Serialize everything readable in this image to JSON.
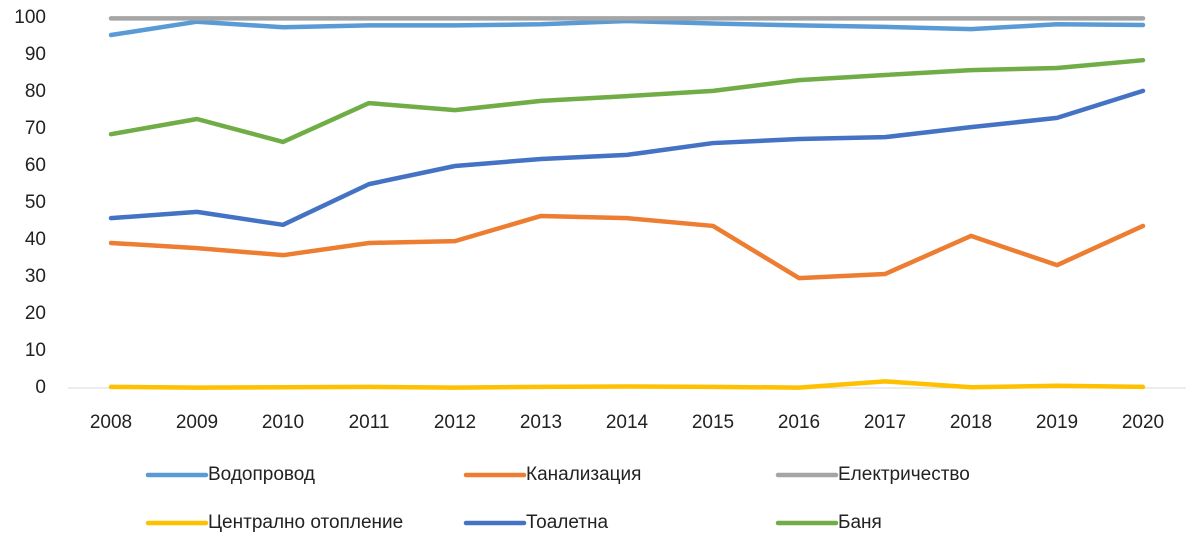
{
  "chart_data": {
    "type": "line",
    "categories": [
      "2008",
      "2009",
      "2010",
      "2011",
      "2012",
      "2013",
      "2014",
      "2015",
      "2016",
      "2017",
      "2018",
      "2019",
      "2020"
    ],
    "series": [
      {
        "name": "Водопровод",
        "color": "#5b9bd5",
        "values": [
          95.4,
          99,
          97.5,
          98,
          98,
          98.3,
          99.2,
          98.5,
          98,
          97.6,
          97,
          98.3,
          98.1
        ]
      },
      {
        "name": "Канализация",
        "color": "#ed7d31",
        "values": [
          39.2,
          37.8,
          35.9,
          39.2,
          39.7,
          46.5,
          45.9,
          43.8,
          29.7,
          30.8,
          41.1,
          33.2,
          43.8
        ]
      },
      {
        "name": "Електричество",
        "color": "#a5a5a5",
        "values": [
          99.9,
          99.9,
          99.9,
          99.9,
          99.9,
          99.9,
          99.9,
          99.9,
          99.9,
          99.9,
          99.9,
          99.9,
          99.9
        ]
      },
      {
        "name": "Централно отопление",
        "color": "#ffc000",
        "values": [
          0.3,
          0.1,
          0.2,
          0.3,
          0.1,
          0.3,
          0.4,
          0.3,
          0.1,
          1.8,
          0.2,
          0.6,
          0.3
        ]
      },
      {
        "name": "Тоалетна",
        "color": "#4472c4",
        "values": [
          45.9,
          47.6,
          44.1,
          55.1,
          60,
          61.9,
          63,
          66.2,
          67.3,
          67.8,
          70.5,
          73,
          80.3
        ]
      },
      {
        "name": "Баня",
        "color": "#70ad47",
        "values": [
          68.6,
          72.7,
          66.5,
          77,
          75.1,
          77.6,
          78.9,
          80.3,
          83.2,
          84.6,
          85.9,
          86.5,
          88.6
        ]
      }
    ],
    "ylim": [
      0,
      100
    ],
    "yticks": [
      0,
      10,
      20,
      30,
      40,
      50,
      60,
      70,
      80,
      90,
      100
    ],
    "grid": false,
    "legend": "bottom"
  }
}
